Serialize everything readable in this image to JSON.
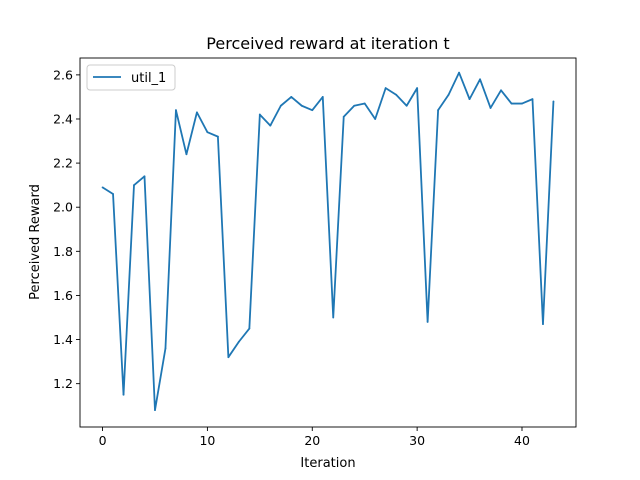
{
  "chart_data": {
    "type": "line",
    "title": "Perceived reward at iteration t",
    "xlabel": "Iteration",
    "ylabel": "Perceived Reward",
    "xlim": [
      -2.15,
      45.15
    ],
    "ylim": [
      1.0035,
      2.6765
    ],
    "xticks": [
      0,
      10,
      20,
      30,
      40
    ],
    "yticks": [
      1.2,
      1.4,
      1.6,
      1.8,
      2.0,
      2.2,
      2.4,
      2.6
    ],
    "ytick_labels": [
      "1.2",
      "1.4",
      "1.6",
      "1.8",
      "2.0",
      "2.2",
      "2.4",
      "2.6"
    ],
    "grid": false,
    "legend_position": "top-left",
    "series": [
      {
        "name": "util_1",
        "color": "#1f77b4",
        "x": [
          0,
          1,
          2,
          3,
          4,
          5,
          6,
          7,
          8,
          9,
          10,
          11,
          12,
          13,
          14,
          15,
          16,
          17,
          18,
          19,
          20,
          21,
          22,
          23,
          24,
          25,
          26,
          27,
          28,
          29,
          30,
          31,
          32,
          33,
          34,
          35,
          36,
          37,
          38,
          39,
          40,
          41,
          42,
          43
        ],
        "y": [
          2.09,
          2.06,
          1.15,
          2.1,
          2.14,
          1.08,
          1.36,
          2.44,
          2.24,
          2.43,
          2.34,
          2.32,
          1.32,
          1.39,
          1.45,
          2.42,
          2.37,
          2.46,
          2.5,
          2.46,
          2.44,
          2.5,
          1.5,
          2.41,
          2.46,
          2.47,
          2.4,
          2.54,
          2.51,
          2.46,
          2.54,
          1.48,
          2.44,
          2.51,
          2.61,
          2.49,
          2.58,
          2.45,
          2.53,
          2.47,
          2.47,
          2.49,
          1.47,
          2.48
        ]
      }
    ]
  }
}
